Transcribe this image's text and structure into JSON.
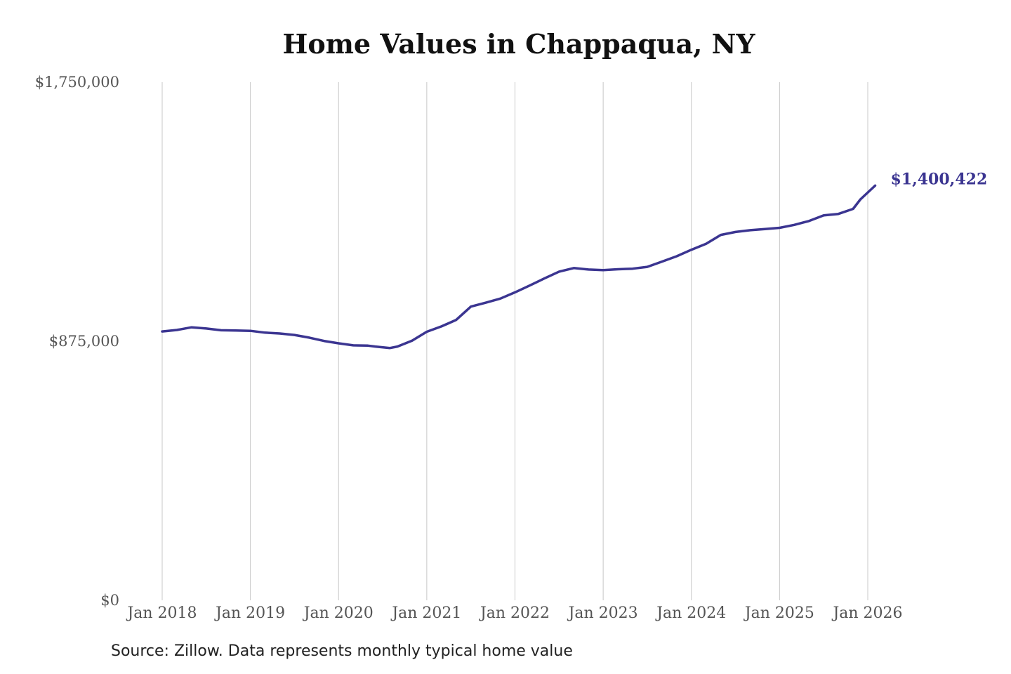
{
  "title": "Home Values in Chappaqua, NY",
  "source": "Source: Zillow. Data represents monthly typical home value",
  "end_label": "$1,400,422",
  "colors": {
    "line": "#3b3591",
    "grid": "#c8c8c8",
    "text": "#555555"
  },
  "chart_data": {
    "type": "line",
    "title": "Home Values in Chappaqua, NY",
    "xlabel": "",
    "ylabel": "",
    "ylim": [
      0,
      1750000
    ],
    "yticks": [
      0,
      875000,
      1750000
    ],
    "ytick_labels": [
      "$0",
      "$875,000",
      "$1,750,000"
    ],
    "xticks": [
      "2018-01",
      "2019-01",
      "2020-01",
      "2021-01",
      "2022-01",
      "2023-01",
      "2024-01",
      "2025-01",
      "2026-01"
    ],
    "xtick_labels": [
      "Jan 2018",
      "Jan 2019",
      "Jan 2020",
      "Jan 2021",
      "Jan 2022",
      "Jan 2023",
      "Jan 2024",
      "Jan 2025",
      "Jan 2026"
    ],
    "grid": "vertical",
    "series": [
      {
        "values": [
          [
            "2018-01",
            908000
          ],
          [
            "2018-03",
            913000
          ],
          [
            "2018-05",
            922000
          ],
          [
            "2018-07",
            918000
          ],
          [
            "2018-09",
            912000
          ],
          [
            "2018-11",
            911000
          ],
          [
            "2019-01",
            910000
          ],
          [
            "2019-03",
            904000
          ],
          [
            "2019-05",
            901000
          ],
          [
            "2019-07",
            896000
          ],
          [
            "2019-09",
            887000
          ],
          [
            "2019-11",
            876000
          ],
          [
            "2020-01",
            868000
          ],
          [
            "2020-03",
            861000
          ],
          [
            "2020-05",
            860000
          ],
          [
            "2020-06",
            857000
          ],
          [
            "2020-08",
            852000
          ],
          [
            "2020-09",
            857000
          ],
          [
            "2020-11",
            877000
          ],
          [
            "2021-01",
            907000
          ],
          [
            "2021-03",
            925000
          ],
          [
            "2021-05",
            947000
          ],
          [
            "2021-07",
            992000
          ],
          [
            "2021-09",
            1005000
          ],
          [
            "2021-11",
            1019000
          ],
          [
            "2022-01",
            1040000
          ],
          [
            "2022-03",
            1063000
          ],
          [
            "2022-05",
            1087000
          ],
          [
            "2022-07",
            1110000
          ],
          [
            "2022-09",
            1122000
          ],
          [
            "2022-11",
            1117000
          ],
          [
            "2023-01",
            1115000
          ],
          [
            "2023-03",
            1118000
          ],
          [
            "2023-05",
            1120000
          ],
          [
            "2023-07",
            1126000
          ],
          [
            "2023-09",
            1144000
          ],
          [
            "2023-11",
            1162000
          ],
          [
            "2024-01",
            1184000
          ],
          [
            "2024-03",
            1204000
          ],
          [
            "2024-05",
            1234000
          ],
          [
            "2024-07",
            1244000
          ],
          [
            "2024-09",
            1250000
          ],
          [
            "2024-11",
            1254000
          ],
          [
            "2025-01",
            1258000
          ],
          [
            "2025-03",
            1268000
          ],
          [
            "2025-05",
            1281000
          ],
          [
            "2025-07",
            1300000
          ],
          [
            "2025-09",
            1305000
          ],
          [
            "2025-11",
            1322000
          ],
          [
            "2025-12",
            1354000
          ],
          [
            "2026-02",
            1400422
          ]
        ]
      }
    ]
  }
}
